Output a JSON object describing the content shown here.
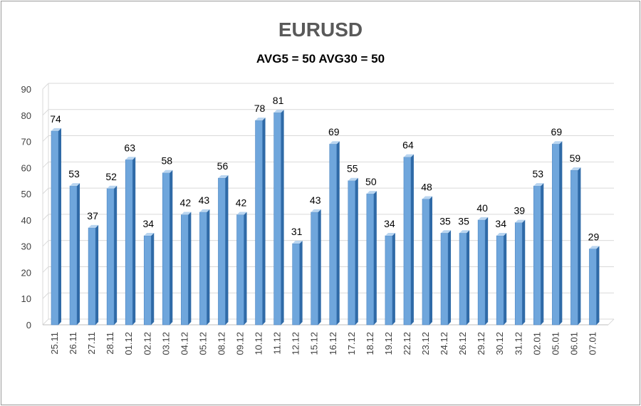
{
  "chart_data": {
    "type": "bar",
    "title": "EURUSD",
    "subtitle": "AVG5 = 50 AVG30 = 50",
    "categories": [
      "25.11",
      "26.11",
      "27.11",
      "28.11",
      "01.12",
      "02.12",
      "03.12",
      "04.12",
      "05.12",
      "08.12",
      "09.12",
      "10.12",
      "11.12",
      "12.12",
      "15.12",
      "16.12",
      "17.12",
      "18.12",
      "19.12",
      "22.12",
      "23.12",
      "24.12",
      "26.12",
      "29.12",
      "30.12",
      "31.12",
      "02.01",
      "05.01",
      "06.01",
      "07.01"
    ],
    "values": [
      74,
      53,
      37,
      52,
      63,
      34,
      58,
      42,
      43,
      56,
      42,
      78,
      81,
      31,
      43,
      69,
      55,
      50,
      34,
      64,
      48,
      35,
      35,
      40,
      34,
      39,
      53,
      69,
      59,
      29
    ],
    "ylim": [
      0,
      90
    ],
    "yticks": [
      0,
      10,
      20,
      30,
      40,
      50,
      60,
      70,
      80,
      90
    ],
    "grid": true,
    "legend": "none",
    "colors": {
      "bar_front": "#6fa6dc",
      "bar_side": "#2f6aa7",
      "bar_top": "#b9d5f0",
      "grid": "#d9d9d9"
    }
  }
}
